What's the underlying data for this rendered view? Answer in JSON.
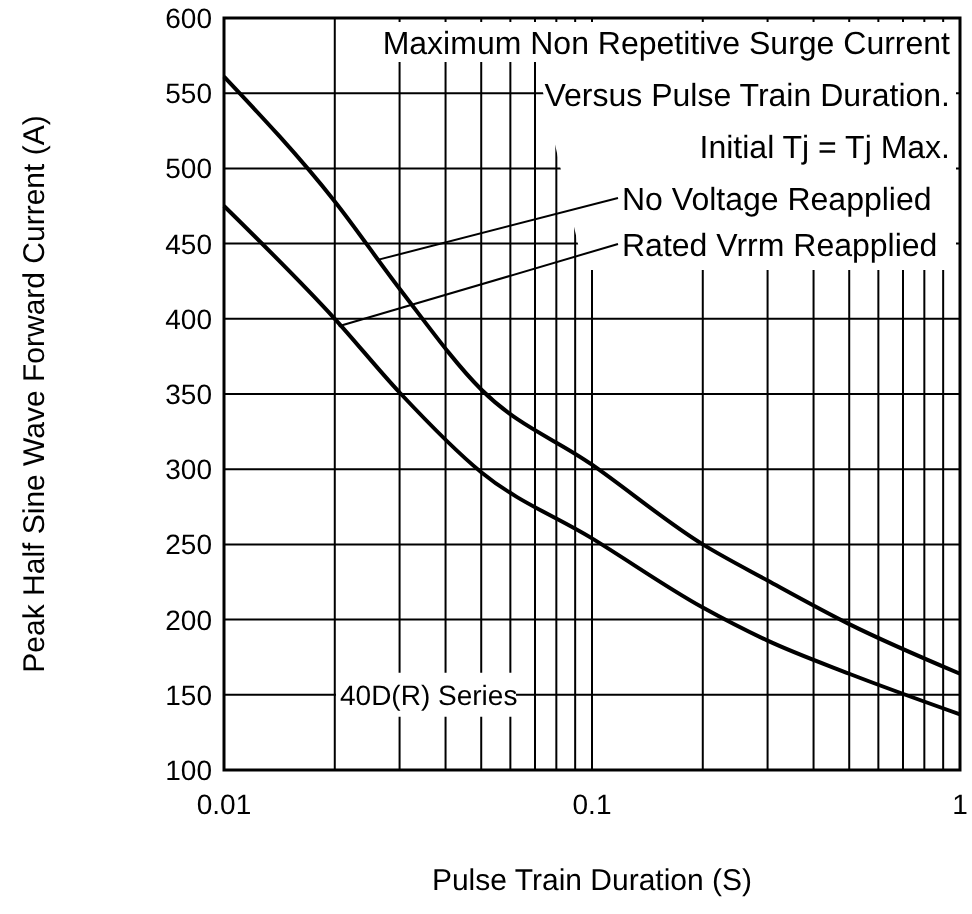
{
  "chart_data": {
    "type": "line",
    "title": "Maximum Non Repetitive Surge Current Versus Pulse Train Duration.",
    "subtitle": "Initial Tj = Tj Max.",
    "xlabel": "Pulse Train Duration (S)",
    "ylabel": "Peak Half Sine Wave Forward Current (A)",
    "annotations": [
      "40D(R) Series",
      {
        "text": "No Voltage Reapplied",
        "x": 0.026,
        "y": 439
      },
      {
        "text": "Rated Vrrm Reapplied",
        "x": 0.0205,
        "y": 395
      }
    ],
    "log": "x",
    "grid": true,
    "xlim": [
      0.01,
      1
    ],
    "ylim": [
      100,
      600
    ],
    "xticks": [
      0.01,
      {
        "value": 0.02,
        "label": null
      },
      {
        "value": 0.03,
        "label": null
      },
      {
        "value": 0.04,
        "label": null
      },
      {
        "value": 0.05,
        "label": null
      },
      {
        "value": 0.06,
        "label": null
      },
      {
        "value": 0.07,
        "label": null
      },
      {
        "value": 0.08,
        "label": null
      },
      {
        "value": 0.09,
        "label": null
      },
      0.1,
      {
        "value": 0.2,
        "label": null
      },
      {
        "value": 0.3,
        "label": null
      },
      {
        "value": 0.4,
        "label": null
      },
      {
        "value": 0.5,
        "label": null
      },
      {
        "value": 0.6,
        "label": null
      },
      {
        "value": 0.7,
        "label": null
      },
      {
        "value": 0.8,
        "label": null
      },
      {
        "value": 0.9,
        "label": null
      },
      1
    ],
    "yticks": [
      100,
      150,
      200,
      250,
      300,
      350,
      400,
      450,
      500,
      550,
      600
    ],
    "series": [
      {
        "color": "#000000",
        "x": [
          0.01,
          0.02,
          0.03,
          0.05,
          0.1,
          0.2,
          0.3,
          0.5,
          1
        ],
        "values": [
          561,
          478,
          420,
          353,
          303,
          250,
          226,
          197,
          164
        ]
      },
      {
        "color": "#000000",
        "x": [
          0.01,
          0.02,
          0.03,
          0.05,
          0.1,
          0.2,
          0.3,
          0.5,
          1
        ],
        "values": [
          475,
          400,
          351,
          298,
          254,
          208,
          186,
          164,
          137
        ]
      }
    ]
  }
}
